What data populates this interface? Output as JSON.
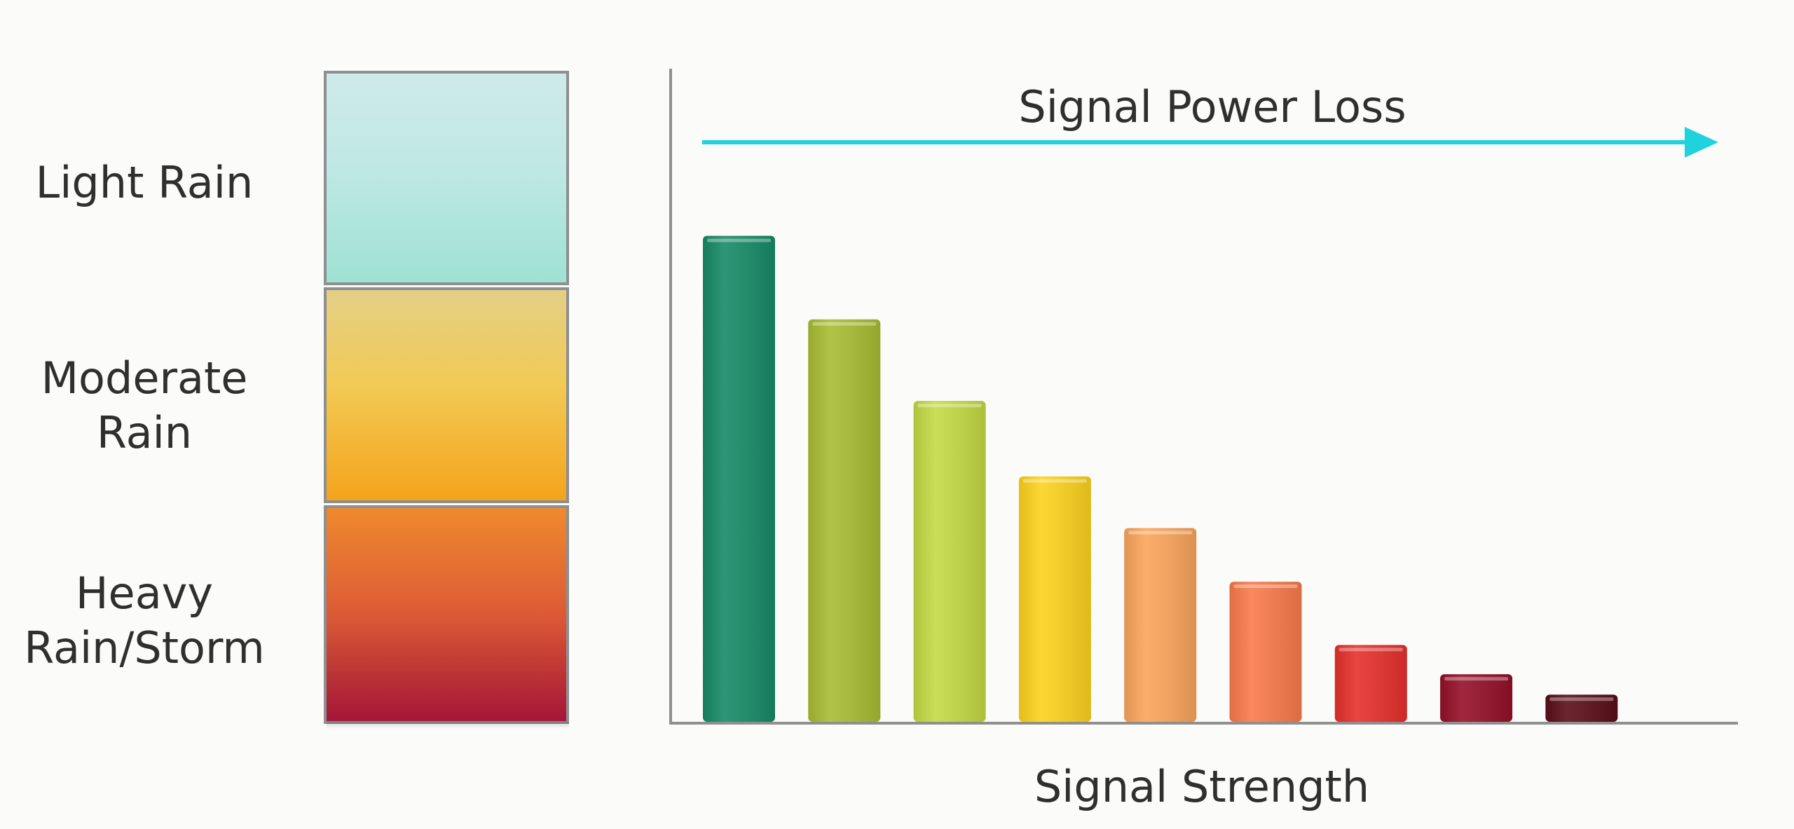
{
  "chart_data": {
    "type": "bar",
    "title": "Signal Power Loss",
    "xlabel": "Signal Strength",
    "ylabel": "",
    "ylim": [
      0,
      100
    ],
    "grid": false,
    "values": [
      71.5,
      59.2,
      47.2,
      36.1,
      28.5,
      20.6,
      11.3,
      7.0,
      4.0
    ],
    "colors": [
      "#178a66",
      "#a8bd33",
      "#c4da44",
      "#fcd31e",
      "#fba55c",
      "#fa7a4b",
      "#e6302c",
      "#941029",
      "#5b0e18"
    ],
    "arrow_color": "#1fd2dc"
  },
  "rain_scale": {
    "levels": [
      {
        "label": "Light Rain"
      },
      {
        "label": "Moderate\nRain"
      },
      {
        "label": "Heavy\nRain/Storm"
      }
    ]
  }
}
